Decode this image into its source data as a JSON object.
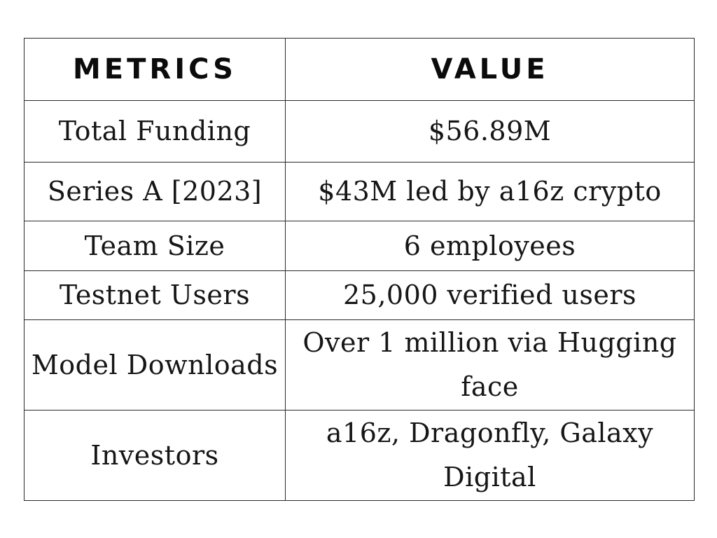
{
  "table": {
    "headers": [
      "METRICS",
      "VALUE"
    ],
    "rows": [
      {
        "metric": "Total Funding",
        "value": "$56.89M"
      },
      {
        "metric": "Series A [2023]",
        "value": "$43M led by a16z crypto"
      },
      {
        "metric": "Team Size",
        "value": "6 employees"
      },
      {
        "metric": "Testnet Users",
        "value": "25,000 verified users"
      },
      {
        "metric": "Model Downloads",
        "value": "Over 1 million via Hugging face"
      },
      {
        "metric": "Investors",
        "value": "a16z, Dragonfly, Galaxy Digital"
      }
    ]
  },
  "colors": {
    "background": "#ffffff",
    "border": "#2a2a2a",
    "text": "#111111"
  }
}
